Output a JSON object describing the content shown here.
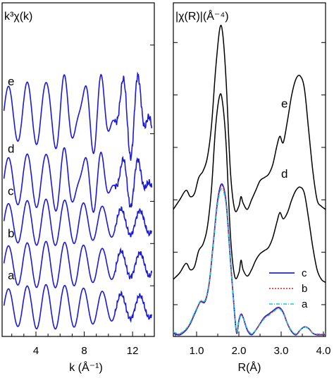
{
  "chart_data": [
    {
      "type": "line",
      "panel_title": "k³χ(k)",
      "xlabel": "k (Å⁻¹)",
      "ylabel": "",
      "xlim": [
        1.2,
        13.8
      ],
      "xticks": [
        4,
        8,
        12
      ],
      "xtick_labels": [
        "4",
        "8",
        "12"
      ],
      "line_color": "#1a1ad6",
      "series": [
        {
          "label": "a",
          "offset": 0.4,
          "amp": 0.48
        },
        {
          "label": "b",
          "offset": 1.4,
          "amp": 0.5
        },
        {
          "label": "c",
          "offset": 2.4,
          "amp": 0.5
        },
        {
          "label": "d",
          "offset": 3.4,
          "amp": 0.6
        },
        {
          "label": "e",
          "offset": 5.0,
          "amp": 0.7
        }
      ],
      "ylim": [
        -0.3,
        7.6
      ]
    },
    {
      "type": "line",
      "panel_title": "|χ(R)|(Å⁻⁴)",
      "xlabel": "R(Å)",
      "ylabel": "",
      "xlim": [
        0.45,
        4.05
      ],
      "xticks": [
        1.0,
        2.0,
        3.0,
        4.0
      ],
      "xtick_labels": [
        "1.0",
        "2.0",
        "3.0",
        "4.0"
      ],
      "ylim": [
        0,
        10.5
      ],
      "series": [
        {
          "label": "e",
          "color": "#000000",
          "dash": "",
          "x": [
            0.45,
            0.6,
            0.75,
            0.85,
            0.95,
            1.05,
            1.15,
            1.25,
            1.35,
            1.45,
            1.55,
            1.62,
            1.7,
            1.8,
            1.9,
            2.0,
            2.05,
            2.1,
            2.2,
            2.3,
            2.4,
            2.5,
            2.6,
            2.7,
            2.8,
            2.9,
            2.97,
            3.05,
            3.15,
            3.25,
            3.35,
            3.45,
            3.55,
            3.65,
            3.75,
            3.85,
            3.95,
            4.05
          ],
          "y": [
            4.0,
            4.3,
            4.6,
            4.4,
            4.5,
            5.0,
            5.2,
            5.6,
            6.6,
            8.4,
            9.7,
            9.5,
            8.0,
            5.2,
            4.0,
            4.1,
            4.4,
            4.2,
            4.0,
            4.3,
            4.6,
            4.9,
            5.0,
            5.1,
            5.4,
            6.0,
            6.3,
            6.1,
            6.8,
            7.6,
            8.1,
            8.2,
            7.8,
            6.5,
            5.2,
            4.3,
            4.1,
            4.0
          ]
        },
        {
          "label": "d",
          "color": "#000000",
          "dash": "",
          "x": [
            0.45,
            0.6,
            0.75,
            0.85,
            0.95,
            1.05,
            1.15,
            1.25,
            1.35,
            1.45,
            1.55,
            1.62,
            1.7,
            1.8,
            1.9,
            2.0,
            2.05,
            2.1,
            2.2,
            2.3,
            2.4,
            2.5,
            2.6,
            2.7,
            2.8,
            2.9,
            2.97,
            3.05,
            3.15,
            3.25,
            3.35,
            3.45,
            3.55,
            3.65,
            3.75,
            3.85,
            3.95,
            4.05
          ],
          "y": [
            1.8,
            2.0,
            2.3,
            2.1,
            2.2,
            2.7,
            2.9,
            3.4,
            4.6,
            6.6,
            7.6,
            7.3,
            6.0,
            3.2,
            1.9,
            2.0,
            2.4,
            2.1,
            1.9,
            2.1,
            2.4,
            2.6,
            2.7,
            2.8,
            3.1,
            3.6,
            3.9,
            3.7,
            3.9,
            4.3,
            4.6,
            4.7,
            4.5,
            3.7,
            2.8,
            2.1,
            1.8,
            1.7
          ]
        },
        {
          "label": "c",
          "color": "#2222d6",
          "dash": "",
          "x": [
            0.45,
            0.6,
            0.75,
            0.85,
            0.95,
            1.05,
            1.1,
            1.2,
            1.3,
            1.4,
            1.5,
            1.6,
            1.7,
            1.8,
            1.9,
            1.95,
            2.0,
            2.05,
            2.1,
            2.2,
            2.3,
            2.4,
            2.5,
            2.6,
            2.7,
            2.8,
            2.9,
            2.97,
            3.05,
            3.15,
            3.25,
            3.35,
            3.45,
            3.55,
            3.65,
            3.75,
            3.85,
            3.95,
            4.05
          ],
          "y": [
            0.1,
            0.05,
            0.2,
            0.4,
            0.7,
            1.0,
            1.1,
            1.1,
            1.7,
            3.0,
            4.3,
            4.8,
            4.2,
            2.4,
            0.7,
            0.1,
            0.5,
            0.7,
            0.6,
            0.2,
            0.05,
            0.2,
            0.4,
            0.6,
            0.7,
            0.8,
            0.9,
            0.9,
            0.75,
            0.4,
            0.15,
            0.05,
            0.2,
            0.3,
            0.25,
            0.1,
            0.05,
            0.05,
            0.05
          ]
        },
        {
          "label": "b",
          "color": "#e02020",
          "dash": "2,2",
          "x": [
            0.45,
            0.6,
            0.75,
            0.85,
            0.95,
            1.05,
            1.1,
            1.2,
            1.3,
            1.4,
            1.5,
            1.6,
            1.7,
            1.8,
            1.9,
            1.95,
            2.0,
            2.05,
            2.1,
            2.2,
            2.3,
            2.4,
            2.5,
            2.6,
            2.7,
            2.8,
            2.9,
            2.97,
            3.05,
            3.15,
            3.25,
            3.35,
            3.45,
            3.55,
            3.65,
            3.75,
            3.85,
            3.95,
            4.05
          ],
          "y": [
            0.12,
            0.07,
            0.22,
            0.42,
            0.72,
            1.0,
            1.12,
            1.12,
            1.72,
            3.0,
            4.28,
            4.75,
            4.18,
            2.4,
            0.72,
            0.12,
            0.48,
            0.68,
            0.6,
            0.22,
            0.07,
            0.2,
            0.4,
            0.58,
            0.68,
            0.78,
            0.88,
            0.88,
            0.74,
            0.4,
            0.16,
            0.06,
            0.2,
            0.3,
            0.25,
            0.1,
            0.06,
            0.06,
            0.06
          ]
        },
        {
          "label": "a",
          "color": "#10c8d8",
          "dash": "5,2,1,2",
          "x": [
            0.45,
            0.6,
            0.75,
            0.85,
            0.95,
            1.05,
            1.1,
            1.2,
            1.3,
            1.4,
            1.5,
            1.6,
            1.7,
            1.8,
            1.9,
            1.95,
            2.0,
            2.05,
            2.1,
            2.2,
            2.3,
            2.4,
            2.5,
            2.6,
            2.7,
            2.8,
            2.9,
            2.97,
            3.05,
            3.15,
            3.25,
            3.35,
            3.45,
            3.55,
            3.65,
            3.75,
            3.85,
            3.95,
            4.05
          ],
          "y": [
            0.14,
            0.09,
            0.24,
            0.44,
            0.74,
            1.02,
            1.14,
            1.14,
            1.74,
            2.95,
            4.2,
            4.65,
            4.1,
            2.35,
            0.74,
            0.14,
            0.46,
            0.66,
            0.58,
            0.24,
            0.09,
            0.2,
            0.38,
            0.56,
            0.66,
            0.76,
            0.86,
            0.86,
            0.72,
            0.4,
            0.18,
            0.08,
            0.2,
            0.3,
            0.24,
            0.11,
            0.08,
            0.08,
            0.08
          ]
        }
      ],
      "curve_labels": [
        {
          "label": "e",
          "x": 3.0,
          "y": 7.2
        },
        {
          "label": "d",
          "x": 3.0,
          "y": 5.0
        }
      ],
      "legend": {
        "position": "bottom-right",
        "entries": [
          "c",
          "b",
          "a"
        ]
      }
    }
  ]
}
